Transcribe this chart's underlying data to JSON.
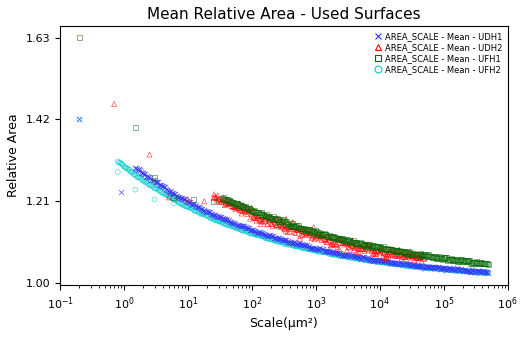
{
  "title": "Mean Relative Area - Used Surfaces",
  "xlabel": "Scale(μm²)",
  "ylabel": "Relative Area",
  "xlim": [
    0.1,
    1000000
  ],
  "ylim": [
    0.995,
    1.65
  ],
  "yticks": [
    1.0,
    1.21,
    1.42,
    1.63
  ],
  "legend_labels": [
    "AREA_SCALE - Mean - UDH1",
    "AREA_SCALE - Mean - UDH2",
    "AREA_SCALE - Mean - UFH1",
    "AREA_SCALE - Mean - UFH2"
  ],
  "legend_colors": [
    "#3333ff",
    "#ff0000",
    "#006600",
    "#00cccc"
  ],
  "series_colors": [
    "#3333ff",
    "#ff0000",
    "#006600",
    "#00cccc"
  ],
  "markers": [
    "x",
    "^",
    "s",
    "o"
  ],
  "background_color": "#ffffff",
  "udh1_a": 0.3,
  "udh1_b": 0.18,
  "udh2_a": 0.42,
  "udh2_b": 0.17,
  "ufh1_a": 0.55,
  "ufh1_b": 0.17,
  "ufh2_a": 0.28,
  "ufh2_b": 0.18
}
